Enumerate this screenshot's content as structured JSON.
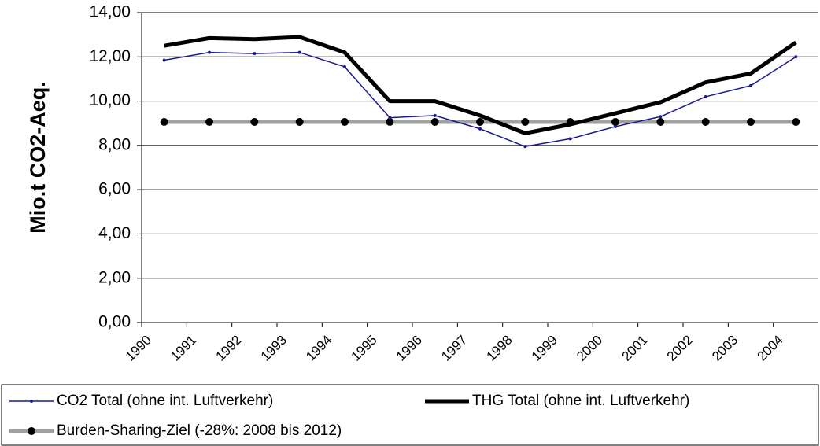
{
  "chart_data": {
    "type": "line",
    "y_label": "Mio.t CO2-Aeq.",
    "categories": [
      "1990",
      "1991",
      "1992",
      "1993",
      "1994",
      "1995",
      "1996",
      "1997",
      "1998",
      "1999",
      "2000",
      "2001",
      "2002",
      "2003",
      "2004"
    ],
    "series": [
      {
        "name": "CO2 Total (ohne int. Luftverkehr)",
        "color": "#1a1a8c",
        "values": [
          11.85,
          12.2,
          12.15,
          12.2,
          11.55,
          9.25,
          9.35,
          8.75,
          7.95,
          8.3,
          8.85,
          9.3,
          10.2,
          10.7,
          12.0
        ]
      },
      {
        "name": "THG Total (ohne int. Luftverkehr)",
        "color": "#000000",
        "values": [
          12.5,
          12.85,
          12.8,
          12.9,
          12.2,
          10.0,
          10.0,
          9.35,
          8.55,
          8.95,
          9.45,
          9.95,
          10.85,
          11.25,
          12.65
        ]
      },
      {
        "name": "Burden-Sharing-Ziel (-28%: 2008 bis 2012)",
        "color": "#a0a0a0",
        "values": [
          9.06,
          9.06,
          9.06,
          9.06,
          9.06,
          9.06,
          9.06,
          9.06,
          9.06,
          9.06,
          9.06,
          9.06,
          9.06,
          9.06,
          9.06
        ]
      }
    ],
    "ylim": [
      0,
      14
    ],
    "yticks": [
      {
        "value": 0,
        "label": "0,00"
      },
      {
        "value": 2,
        "label": "2,00"
      },
      {
        "value": 4,
        "label": "4,00"
      },
      {
        "value": 6,
        "label": "6,00"
      },
      {
        "value": 8,
        "label": "8,00"
      },
      {
        "value": 10,
        "label": "10,00"
      },
      {
        "value": 12,
        "label": "12,00"
      },
      {
        "value": 14,
        "label": "14,00"
      }
    ],
    "grid": true
  }
}
